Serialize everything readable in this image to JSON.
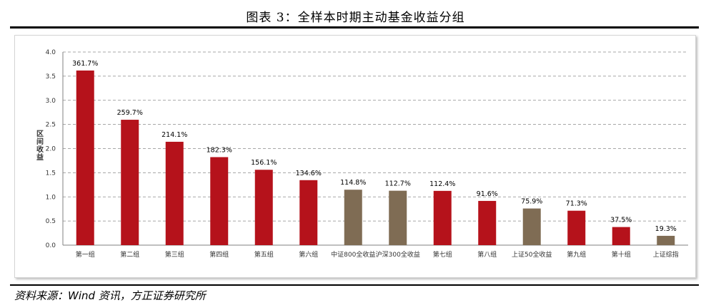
{
  "title": "图表 3：全样本时期主动基金收益分组",
  "source": "资料来源：Wind 资讯，方正证券研究所",
  "chart_data": {
    "type": "bar",
    "title": "图表 3：全样本时期主动基金收益分组",
    "ylabel": "区间收益",
    "xlabel": "",
    "ylim": [
      0,
      4.0
    ],
    "yticks": [
      "0.0",
      "0.5",
      "1.0",
      "1.5",
      "2.0",
      "2.5",
      "3.0",
      "3.5",
      "4.0"
    ],
    "grid": true,
    "legend": "none",
    "categories": [
      "第一组",
      "第二组",
      "第三组",
      "第四组",
      "第五组",
      "第六组",
      "中证800全收益",
      "沪深300全收益",
      "第七组",
      "第八组",
      "上证50全收益",
      "第九组",
      "第十组",
      "上证综指"
    ],
    "values": [
      3.617,
      2.597,
      2.141,
      1.823,
      1.561,
      1.346,
      1.148,
      1.127,
      1.124,
      0.916,
      0.759,
      0.713,
      0.375,
      0.193
    ],
    "labels": [
      "361.7%",
      "259.7%",
      "214.1%",
      "182.3%",
      "156.1%",
      "134.6%",
      "114.8%",
      "112.7%",
      "112.4%",
      "91.6%",
      "75.9%",
      "71.3%",
      "37.5%",
      "19.3%"
    ],
    "colors": [
      "#b5121b",
      "#b5121b",
      "#b5121b",
      "#b5121b",
      "#b5121b",
      "#b5121b",
      "#7f6c54",
      "#7f6c54",
      "#b5121b",
      "#b5121b",
      "#7f6c54",
      "#b5121b",
      "#b5121b",
      "#7f6c54"
    ]
  }
}
